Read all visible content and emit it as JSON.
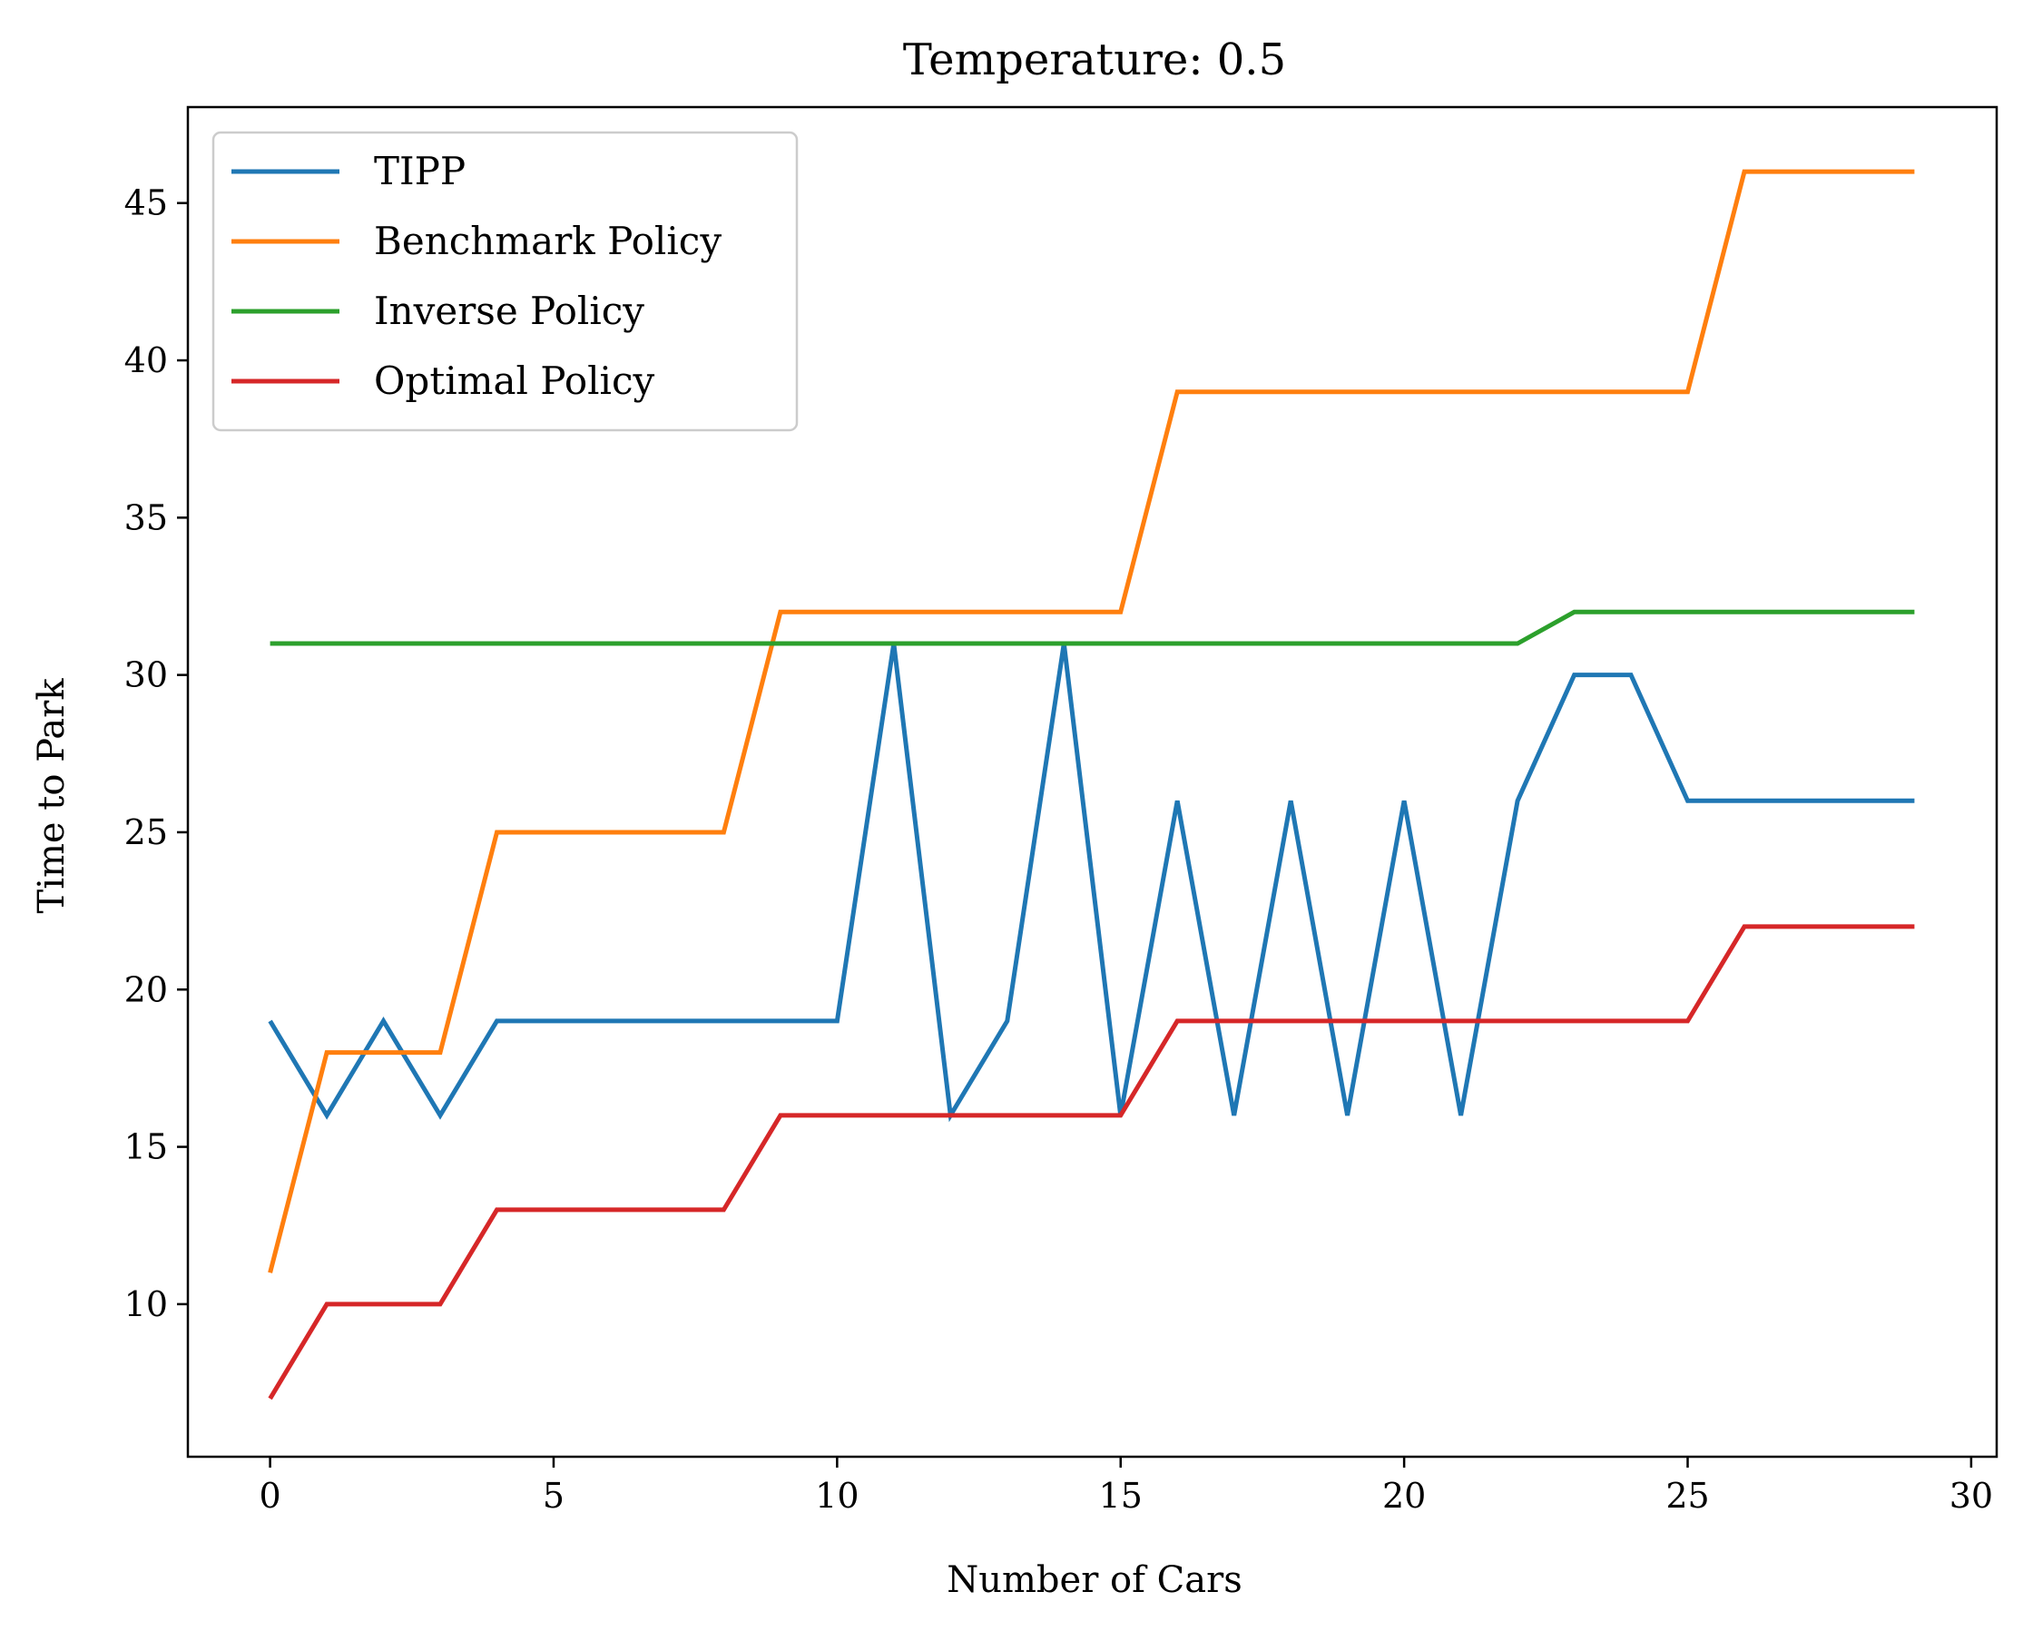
{
  "chart_data": {
    "type": "line",
    "title": "Temperature: 0.5",
    "xlabel": "Number of Cars",
    "ylabel": "Time to Park",
    "xlim": [
      -1.45,
      30.45
    ],
    "ylim": [
      5.15,
      48.05
    ],
    "xticks": [
      0,
      5,
      10,
      15,
      20,
      25,
      30
    ],
    "yticks": [
      10,
      15,
      20,
      25,
      30,
      35,
      40,
      45
    ],
    "legend_position": "top-left",
    "x": [
      0,
      1,
      2,
      3,
      4,
      5,
      6,
      7,
      8,
      9,
      10,
      11,
      12,
      13,
      14,
      15,
      16,
      17,
      18,
      19,
      20,
      21,
      22,
      23,
      24,
      25,
      26,
      27,
      28,
      29
    ],
    "series": [
      {
        "name": "TIPP",
        "color": "#1f77b4",
        "values": [
          19,
          16,
          19,
          16,
          19,
          19,
          19,
          19,
          19,
          19,
          19,
          31,
          16,
          19,
          31,
          16,
          26,
          16,
          26,
          16,
          26,
          16,
          26,
          30,
          30,
          26,
          26,
          26,
          26,
          26
        ]
      },
      {
        "name": "Benchmark Policy",
        "color": "#ff7f0e",
        "values": [
          11,
          18,
          18,
          18,
          25,
          25,
          25,
          25,
          25,
          32,
          32,
          32,
          32,
          32,
          32,
          32,
          39,
          39,
          39,
          39,
          39,
          39,
          39,
          39,
          39,
          39,
          46,
          46,
          46,
          46
        ]
      },
      {
        "name": "Inverse Policy",
        "color": "#2ca02c",
        "values": [
          31,
          31,
          31,
          31,
          31,
          31,
          31,
          31,
          31,
          31,
          31,
          31,
          31,
          31,
          31,
          31,
          31,
          31,
          31,
          31,
          31,
          31,
          31,
          32,
          32,
          32,
          32,
          32,
          32,
          32
        ]
      },
      {
        "name": "Optimal Policy",
        "color": "#d62728",
        "values": [
          7,
          10,
          10,
          10,
          13,
          13,
          13,
          13,
          13,
          16,
          16,
          16,
          16,
          16,
          16,
          16,
          19,
          19,
          19,
          19,
          19,
          19,
          19,
          19,
          19,
          19,
          22,
          22,
          22,
          22
        ]
      }
    ]
  }
}
